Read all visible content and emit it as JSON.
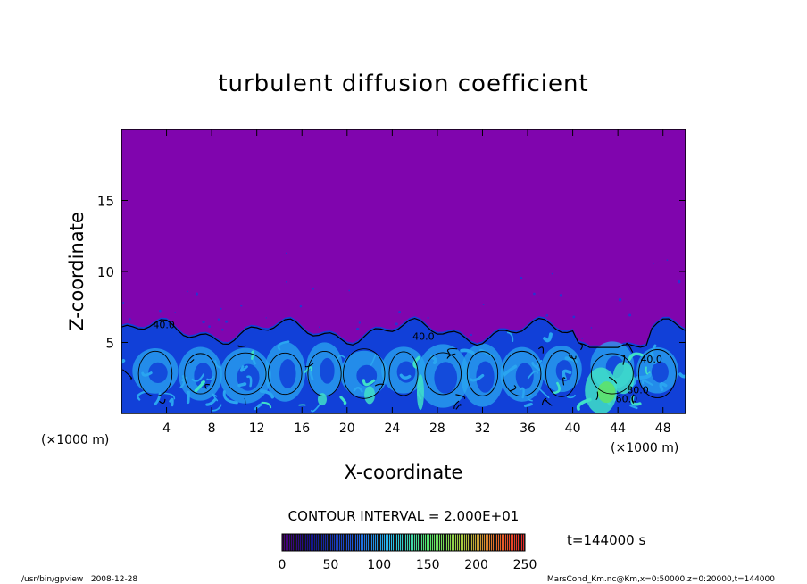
{
  "chart_data": {
    "type": "heatmap",
    "title": "turbulent diffusion coefficient",
    "xlabel": "X-coordinate",
    "ylabel": "Z-coordinate",
    "x_unit": "(×1000 m)",
    "y_unit": "(×1000 m)",
    "xlim": [
      0,
      50
    ],
    "ylim": [
      0,
      20
    ],
    "x_ticks": [
      4,
      8,
      12,
      16,
      20,
      24,
      28,
      32,
      36,
      40,
      44,
      48
    ],
    "y_ticks": [
      5,
      10,
      15
    ],
    "contour_interval_text": "CONTOUR INTERVAL = 2.000E+01",
    "contour_labels": [
      "40.0",
      "40.0",
      "40.0",
      "60.0",
      "80.0"
    ],
    "colorbar": {
      "range": [
        0,
        250
      ],
      "ticks": [
        0,
        50,
        100,
        150,
        200,
        250
      ]
    },
    "time_text": "t=144000 s",
    "footer_left": "/usr/bin/gpview   2008-12-28",
    "footer_right": "MarsCond_Km.nc@Km,x=0:50000,z=0:20000,t=144000",
    "colors": {
      "background": "#8005AE",
      "low": "#1140D8",
      "mid": "#2AA5F0",
      "high": "#3FE0C8",
      "peak": "#5FE26A"
    }
  }
}
